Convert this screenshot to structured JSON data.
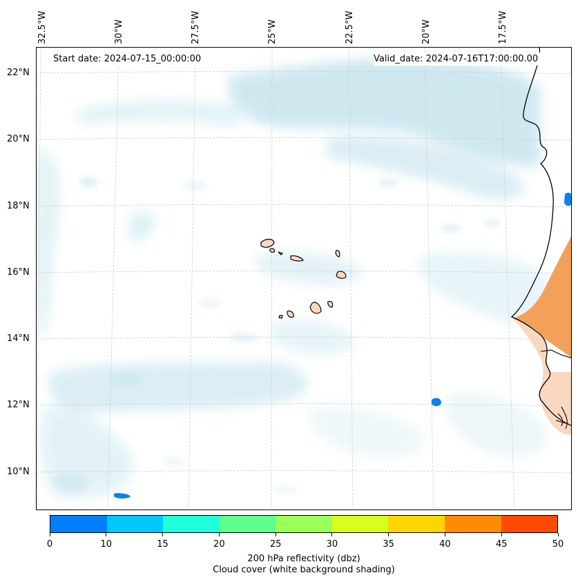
{
  "map": {
    "start_label": "Start date: 2024-07-15_00:00:00",
    "valid_label": "Valid_date: 2024-07-16T17:00:00.00",
    "lon_labels": [
      "32.5°W",
      "30°W",
      "27.5°W",
      "25°W",
      "22.5°W",
      "20°W",
      "17.5°W"
    ],
    "lat_labels": [
      "22°N",
      "20°N",
      "18°N",
      "16°N",
      "14°N",
      "12°N",
      "10°N"
    ]
  },
  "colorbar": {
    "colors": [
      "#0080ff",
      "#00c8ff",
      "#1effda",
      "#5dff8c",
      "#9aff56",
      "#d6ff1e",
      "#ffd600",
      "#ff8c00",
      "#ff4a00"
    ],
    "ticks": [
      "0",
      "10",
      "15",
      "20",
      "25",
      "30",
      "35",
      "40",
      "45",
      "50"
    ],
    "label_line1": "200 hPa reflectivity (dbz)",
    "label_line2": "Cloud cover (white background shading)"
  }
}
